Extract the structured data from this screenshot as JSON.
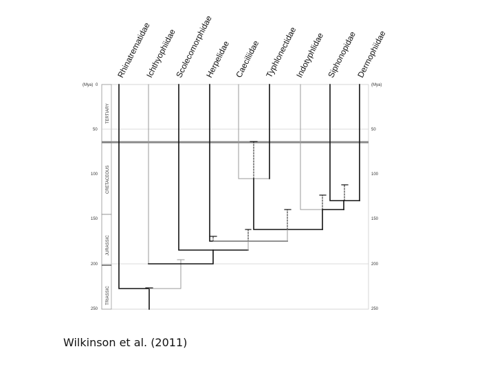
{
  "caption": "Wilkinson et al. (2011)",
  "taxa": [
    "Rhinatrematidae",
    "Ichthyophiidae",
    "Scolecomorphidae",
    "Herpelidae",
    "Caeciliidae",
    "Typhlonectidae",
    "Indotyphlidae",
    "Siphonopidae",
    "Dermophiidae"
  ],
  "axis": {
    "unit_left": "(Mya)",
    "unit_right": "(Mya)",
    "ticks": [
      0,
      50,
      100,
      150,
      200,
      250
    ],
    "left_tick_labels": [
      "0",
      "50",
      "100",
      "150",
      "200",
      "250"
    ],
    "right_tick_labels": [
      "0",
      "50",
      "100",
      "150",
      "200",
      "250"
    ]
  },
  "periods": [
    {
      "name": "TERTIARY",
      "start": 0,
      "end": 66
    },
    {
      "name": "CRETACEOUS",
      "start": 66,
      "end": 145
    },
    {
      "name": "JURASSIC",
      "start": 145,
      "end": 201
    },
    {
      "name": "TRIASSIC",
      "start": 201,
      "end": 250
    }
  ],
  "highlight_line_mya": 66,
  "colors": {
    "ink": "#111111",
    "grey": "#888888",
    "highlight": "#8a8a8a"
  }
}
